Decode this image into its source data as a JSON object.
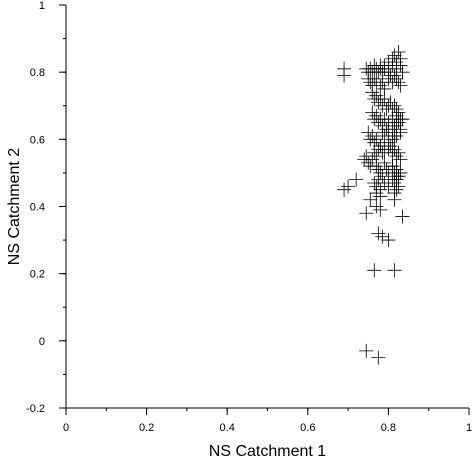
{
  "chart_data": {
    "type": "scatter",
    "title": "",
    "xlabel": "NS Catchment 1",
    "ylabel": "NS Catchment 2",
    "xlim": [
      0,
      1
    ],
    "ylim": [
      -0.2,
      1
    ],
    "x_major_ticks": [
      0,
      0.2,
      0.4,
      0.6,
      0.8,
      1
    ],
    "x_tick_labels": [
      "0",
      "0.2",
      "0.4",
      "0.6",
      "0.8",
      "1"
    ],
    "y_major_ticks": [
      -0.2,
      0,
      0.2,
      0.4,
      0.6,
      0.8,
      1
    ],
    "y_tick_labels": [
      "-0.2",
      "0",
      "0.2",
      "0.4",
      "0.6",
      "0.8",
      "1"
    ],
    "x_minor_step": 0.1,
    "y_minor_step": 0.1,
    "grid": false,
    "marker": "plus",
    "series": [
      {
        "x": [
          0.69,
          0.69,
          0.7,
          0.69,
          0.72,
          0.745,
          0.75,
          0.755,
          0.76,
          0.765,
          0.77,
          0.775,
          0.78,
          0.78,
          0.785,
          0.79,
          0.79,
          0.8,
          0.8,
          0.81,
          0.81,
          0.815,
          0.82,
          0.82,
          0.825,
          0.83,
          0.83,
          0.835,
          0.75,
          0.755,
          0.76,
          0.765,
          0.77,
          0.78,
          0.785,
          0.79,
          0.8,
          0.805,
          0.81,
          0.815,
          0.82,
          0.825,
          0.83,
          0.76,
          0.765,
          0.77,
          0.775,
          0.78,
          0.785,
          0.79,
          0.795,
          0.8,
          0.805,
          0.81,
          0.815,
          0.82,
          0.76,
          0.765,
          0.77,
          0.775,
          0.78,
          0.785,
          0.79,
          0.795,
          0.8,
          0.81,
          0.815,
          0.82,
          0.825,
          0.83,
          0.75,
          0.755,
          0.76,
          0.765,
          0.77,
          0.78,
          0.785,
          0.79,
          0.8,
          0.81,
          0.815,
          0.82,
          0.825,
          0.83,
          0.835,
          0.8,
          0.805,
          0.81,
          0.815,
          0.82,
          0.825,
          0.83,
          0.81,
          0.815,
          0.82,
          0.825,
          0.83,
          0.74,
          0.745,
          0.75,
          0.755,
          0.76,
          0.765,
          0.77,
          0.775,
          0.78,
          0.785,
          0.79,
          0.8,
          0.81,
          0.82,
          0.83,
          0.77,
          0.775,
          0.78,
          0.785,
          0.79,
          0.795,
          0.8,
          0.81,
          0.82,
          0.765,
          0.77,
          0.775,
          0.78,
          0.79,
          0.8,
          0.81,
          0.82,
          0.755,
          0.77,
          0.78,
          0.815,
          0.82,
          0.825,
          0.815,
          0.82,
          0.825,
          0.745,
          0.77,
          0.78,
          0.815,
          0.835,
          0.775,
          0.785,
          0.8,
          0.765,
          0.815,
          0.745,
          0.775
        ],
        "y": [
          0.81,
          0.79,
          0.46,
          0.45,
          0.48,
          0.81,
          0.8,
          0.81,
          0.8,
          0.82,
          0.81,
          0.8,
          0.82,
          0.81,
          0.8,
          0.82,
          0.81,
          0.83,
          0.8,
          0.84,
          0.82,
          0.85,
          0.83,
          0.81,
          0.86,
          0.84,
          0.82,
          0.8,
          0.78,
          0.77,
          0.76,
          0.78,
          0.77,
          0.76,
          0.77,
          0.75,
          0.78,
          0.79,
          0.77,
          0.79,
          0.78,
          0.77,
          0.76,
          0.74,
          0.72,
          0.73,
          0.71,
          0.72,
          0.7,
          0.72,
          0.69,
          0.7,
          0.71,
          0.69,
          0.7,
          0.69,
          0.68,
          0.66,
          0.67,
          0.65,
          0.66,
          0.64,
          0.66,
          0.63,
          0.65,
          0.66,
          0.64,
          0.67,
          0.68,
          0.66,
          0.62,
          0.6,
          0.61,
          0.59,
          0.6,
          0.58,
          0.62,
          0.61,
          0.63,
          0.62,
          0.61,
          0.64,
          0.65,
          0.63,
          0.66,
          0.57,
          0.58,
          0.56,
          0.57,
          0.55,
          0.56,
          0.54,
          0.52,
          0.5,
          0.51,
          0.49,
          0.5,
          0.54,
          0.55,
          0.53,
          0.52,
          0.54,
          0.56,
          0.55,
          0.57,
          0.58,
          0.56,
          0.57,
          0.59,
          0.6,
          0.61,
          0.62,
          0.52,
          0.51,
          0.5,
          0.49,
          0.53,
          0.51,
          0.5,
          0.52,
          0.48,
          0.47,
          0.46,
          0.48,
          0.45,
          0.47,
          0.46,
          0.48,
          0.49,
          0.42,
          0.44,
          0.43,
          0.44,
          0.45,
          0.46,
          0.47,
          0.48,
          0.49,
          0.38,
          0.4,
          0.39,
          0.42,
          0.37,
          0.32,
          0.31,
          0.3,
          0.21,
          0.21,
          -0.03,
          -0.05
        ]
      }
    ]
  }
}
